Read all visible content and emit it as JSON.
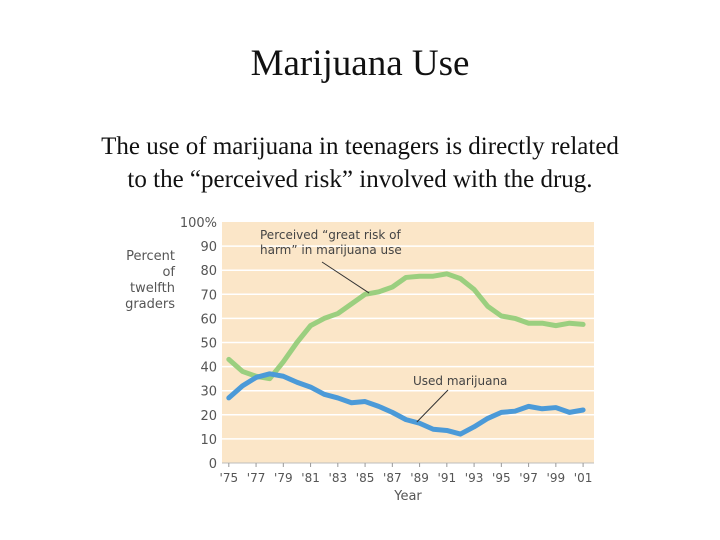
{
  "slide": {
    "title": "Marijuana Use",
    "body_line1": "The use of marijuana in teenagers is directly related",
    "body_line2": "to the “perceived risk” involved with the drug."
  },
  "colors": {
    "plot_bg": "#fbe6c8",
    "grid": "#ffffff",
    "risk_line": "#9bcf7f",
    "use_line": "#4b9ad8",
    "text": "#555555"
  },
  "chart_data": {
    "type": "line",
    "x": [
      1975,
      1976,
      1977,
      1978,
      1979,
      1980,
      1981,
      1982,
      1983,
      1984,
      1985,
      1986,
      1987,
      1988,
      1989,
      1990,
      1991,
      1992,
      1993,
      1994,
      1995,
      1996,
      1997,
      1998,
      1999,
      2000,
      2001
    ],
    "x_tick_labels": [
      "'75",
      "'77",
      "'79",
      "'81",
      "'83",
      "'85",
      "'87",
      "'89",
      "'91",
      "'93",
      "'95",
      "'97",
      "'99",
      "'01"
    ],
    "x_tick_years": [
      1975,
      1977,
      1979,
      1981,
      1983,
      1985,
      1987,
      1989,
      1991,
      1993,
      1995,
      1997,
      1999,
      2001
    ],
    "y_tick_labels": [
      "0",
      "10",
      "20",
      "30",
      "40",
      "50",
      "60",
      "70",
      "80",
      "90",
      "100%"
    ],
    "y_ticks": [
      0,
      10,
      20,
      30,
      40,
      50,
      60,
      70,
      80,
      90,
      100
    ],
    "ylim": [
      0,
      100
    ],
    "xlim": [
      1974.5,
      2001.8
    ],
    "xlabel": "Year",
    "ylabel_lines": [
      "Percent",
      "of",
      "twelfth",
      "graders"
    ],
    "series": [
      {
        "name": "Perceived “great risk of harm” in marijuana use",
        "annotation_lines": [
          "Perceived “great risk of",
          "harm” in marijuana use"
        ],
        "values": [
          43,
          38,
          36,
          35,
          42,
          50,
          57,
          60,
          62,
          66,
          70,
          71,
          73,
          77,
          77.5,
          77.5,
          78.5,
          76.5,
          72,
          65,
          61,
          60,
          58,
          58,
          57,
          58,
          57.5
        ]
      },
      {
        "name": "Used marijuana",
        "annotation_lines": [
          "Used marijuana"
        ],
        "values": [
          27,
          32,
          35.5,
          37,
          36,
          33.5,
          31.5,
          28.5,
          27,
          25,
          25.5,
          23.5,
          21,
          18,
          16.5,
          14,
          13.5,
          12,
          15,
          18.5,
          21,
          21.5,
          23.5,
          22.5,
          23,
          21,
          22
        ]
      }
    ],
    "grid": true,
    "legend": "none"
  }
}
